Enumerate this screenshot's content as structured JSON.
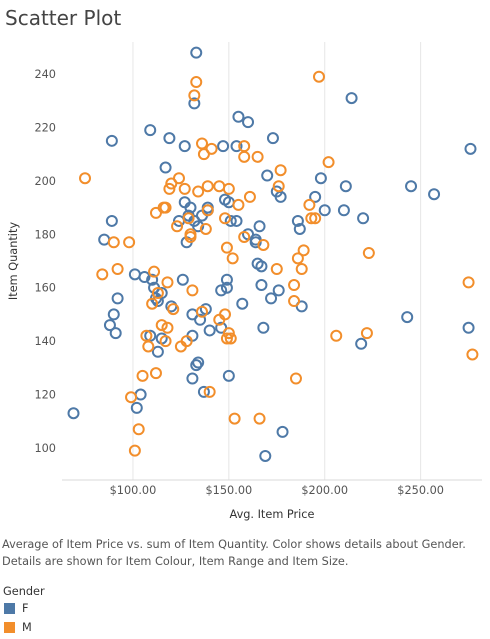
{
  "title": "Scatter Plot",
  "caption_line1": "Average of Item Price vs. sum of Item Quantity.  Color shows details about Gender.",
  "caption_line2": "Details are shown for Item Colour, Item Range and Item Size.",
  "legend": {
    "title": "Gender",
    "items": [
      {
        "label": "F",
        "color": "#4e79a7"
      },
      {
        "label": "M",
        "color": "#f28e2b"
      }
    ]
  },
  "chart_data": {
    "type": "scatter",
    "xlabel": "Avg. Item Price",
    "ylabel": "Item Quantity",
    "xlim": [
      63,
      282
    ],
    "ylim": [
      88,
      252
    ],
    "xticks": [
      100,
      150,
      200,
      250
    ],
    "xtick_labels": [
      "$100.00",
      "$150.00",
      "$200.00",
      "$250.00"
    ],
    "yticks": [
      100,
      120,
      140,
      160,
      180,
      200,
      220,
      240
    ],
    "ytick_labels": [
      "100",
      "120",
      "140",
      "160",
      "180",
      "200",
      "220",
      "240"
    ],
    "grid": "vertical",
    "legend_position": "bottom-left",
    "series": [
      {
        "name": "F",
        "color": "#4e79a7",
        "points": [
          [
            69,
            113
          ],
          [
            85,
            178
          ],
          [
            88,
            146
          ],
          [
            89,
            215
          ],
          [
            89,
            185
          ],
          [
            90,
            150
          ],
          [
            91,
            143
          ],
          [
            92,
            156
          ],
          [
            101,
            165
          ],
          [
            102,
            115
          ],
          [
            104,
            120
          ],
          [
            106,
            164
          ],
          [
            109,
            142
          ],
          [
            109,
            219
          ],
          [
            110,
            163
          ],
          [
            111,
            160
          ],
          [
            112,
            156
          ],
          [
            113,
            136
          ],
          [
            113,
            155
          ],
          [
            115,
            158
          ],
          [
            115,
            141
          ],
          [
            117,
            205
          ],
          [
            119,
            216
          ],
          [
            120,
            153
          ],
          [
            124,
            185
          ],
          [
            126,
            163
          ],
          [
            127,
            192
          ],
          [
            127,
            213
          ],
          [
            128,
            177
          ],
          [
            129,
            187
          ],
          [
            130,
            190
          ],
          [
            131,
            142
          ],
          [
            131,
            126
          ],
          [
            131,
            150
          ],
          [
            132,
            185
          ],
          [
            132,
            229
          ],
          [
            133,
            131
          ],
          [
            133,
            248
          ],
          [
            134,
            132
          ],
          [
            134,
            183
          ],
          [
            135,
            148
          ],
          [
            136,
            187
          ],
          [
            137,
            121
          ],
          [
            138,
            152
          ],
          [
            139,
            190
          ],
          [
            139,
            189
          ],
          [
            140,
            144
          ],
          [
            146,
            145
          ],
          [
            146,
            159
          ],
          [
            147,
            213
          ],
          [
            148,
            193
          ],
          [
            149,
            160
          ],
          [
            149,
            163
          ],
          [
            150,
            127
          ],
          [
            150,
            192
          ],
          [
            151,
            185
          ],
          [
            154,
            213
          ],
          [
            154,
            185
          ],
          [
            155,
            224
          ],
          [
            157,
            154
          ],
          [
            160,
            180
          ],
          [
            160,
            222
          ],
          [
            164,
            177
          ],
          [
            164,
            178
          ],
          [
            165,
            169
          ],
          [
            166,
            183
          ],
          [
            167,
            168
          ],
          [
            167,
            161
          ],
          [
            168,
            145
          ],
          [
            169,
            97
          ],
          [
            170,
            202
          ],
          [
            172,
            156
          ],
          [
            173,
            216
          ],
          [
            175,
            196
          ],
          [
            176,
            159
          ],
          [
            177,
            194
          ],
          [
            178,
            106
          ],
          [
            186,
            185
          ],
          [
            187,
            182
          ],
          [
            188,
            153
          ],
          [
            195,
            194
          ],
          [
            198,
            201
          ],
          [
            200,
            189
          ],
          [
            210,
            189
          ],
          [
            211,
            198
          ],
          [
            214,
            231
          ],
          [
            219,
            139
          ],
          [
            220,
            186
          ],
          [
            243,
            149
          ],
          [
            245,
            198
          ],
          [
            257,
            195
          ],
          [
            275,
            145
          ],
          [
            276,
            212
          ]
        ]
      },
      {
        "name": "M",
        "color": "#f28e2b",
        "points": [
          [
            75,
            201
          ],
          [
            84,
            165
          ],
          [
            90,
            177
          ],
          [
            92,
            167
          ],
          [
            98,
            177
          ],
          [
            99,
            119
          ],
          [
            101,
            99
          ],
          [
            103,
            107
          ],
          [
            105,
            127
          ],
          [
            107,
            142
          ],
          [
            108,
            138
          ],
          [
            110,
            154
          ],
          [
            111,
            166
          ],
          [
            112,
            128
          ],
          [
            112,
            188
          ],
          [
            113,
            158
          ],
          [
            115,
            146
          ],
          [
            116,
            190
          ],
          [
            117,
            190
          ],
          [
            117,
            140
          ],
          [
            118,
            162
          ],
          [
            118,
            145
          ],
          [
            119,
            197
          ],
          [
            120,
            199
          ],
          [
            121,
            152
          ],
          [
            123,
            183
          ],
          [
            124,
            201
          ],
          [
            125,
            138
          ],
          [
            127,
            197
          ],
          [
            128,
            140
          ],
          [
            129,
            186
          ],
          [
            130,
            180
          ],
          [
            130,
            179
          ],
          [
            131,
            159
          ],
          [
            132,
            232
          ],
          [
            133,
            237
          ],
          [
            134,
            196
          ],
          [
            136,
            151
          ],
          [
            136,
            214
          ],
          [
            137,
            210
          ],
          [
            138,
            182
          ],
          [
            139,
            198
          ],
          [
            139,
            189
          ],
          [
            140,
            121
          ],
          [
            141,
            212
          ],
          [
            145,
            198
          ],
          [
            145,
            148
          ],
          [
            148,
            186
          ],
          [
            148,
            150
          ],
          [
            149,
            175
          ],
          [
            149,
            141
          ],
          [
            150,
            197
          ],
          [
            150,
            143
          ],
          [
            151,
            141
          ],
          [
            152,
            171
          ],
          [
            153,
            111
          ],
          [
            155,
            191
          ],
          [
            158,
            179
          ],
          [
            158,
            209
          ],
          [
            158,
            213
          ],
          [
            161,
            194
          ],
          [
            165,
            209
          ],
          [
            166,
            111
          ],
          [
            168,
            176
          ],
          [
            175,
            167
          ],
          [
            176,
            198
          ],
          [
            177,
            204
          ],
          [
            184,
            155
          ],
          [
            184,
            161
          ],
          [
            185,
            126
          ],
          [
            186,
            171
          ],
          [
            188,
            167
          ],
          [
            189,
            174
          ],
          [
            192,
            191
          ],
          [
            193,
            186
          ],
          [
            195,
            186
          ],
          [
            197,
            239
          ],
          [
            202,
            207
          ],
          [
            206,
            142
          ],
          [
            222,
            143
          ],
          [
            223,
            173
          ],
          [
            275,
            162
          ],
          [
            277,
            135
          ]
        ]
      }
    ]
  }
}
